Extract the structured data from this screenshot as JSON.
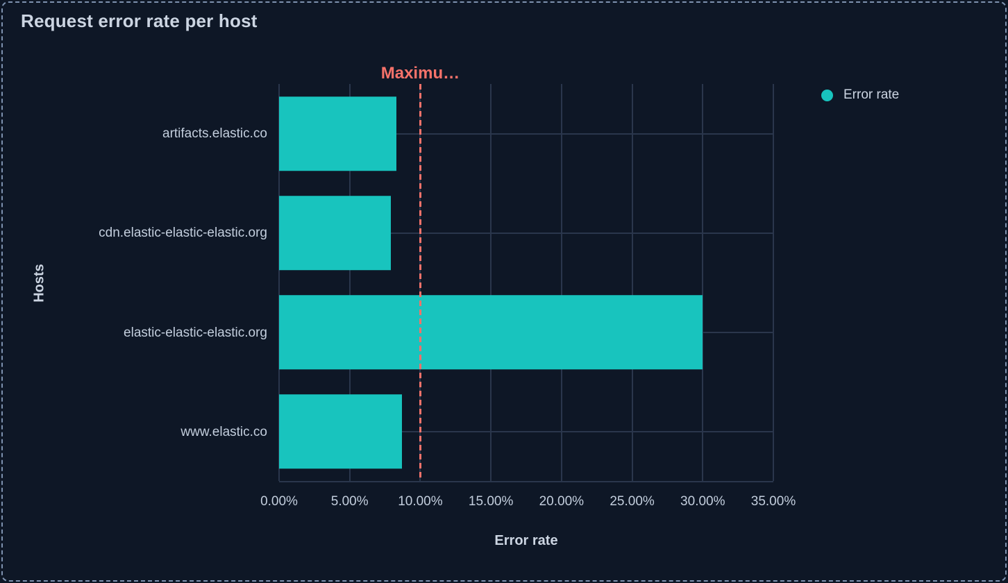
{
  "panel": {
    "title": "Request error rate per host"
  },
  "legend": {
    "position": "right",
    "items": [
      {
        "label": "Error rate",
        "color": "#18c4be"
      }
    ]
  },
  "chart_data": {
    "type": "bar",
    "orientation": "horizontal",
    "title": "Request error rate per host",
    "categories": [
      "artifacts.elastic.co",
      "cdn.elastic-elastic-elastic.org",
      "elastic-elastic-elastic.org",
      "www.elastic.co"
    ],
    "series": [
      {
        "name": "Error rate",
        "values": [
          8.3,
          7.9,
          30.0,
          8.7
        ],
        "unit": "%",
        "color": "#18c4be"
      }
    ],
    "xlabel": "Error rate",
    "ylabel": "Hosts",
    "xlim": [
      0,
      35
    ],
    "x_tick_values": [
      0,
      5,
      10,
      15,
      20,
      25,
      30,
      35
    ],
    "x_ticks": [
      "0.00%",
      "5.00%",
      "10.00%",
      "15.00%",
      "20.00%",
      "25.00%",
      "30.00%",
      "35.00%"
    ],
    "grid": true,
    "legend_position": "top-right",
    "annotation": {
      "label": "Maximu…",
      "value": 10,
      "color": "#f6726a",
      "line_style": "dashed"
    }
  },
  "colors": {
    "background": "#0e1726",
    "gridline": "#2a364c",
    "bar": "#18c4be",
    "threshold": "#f6726a",
    "text": "#ccd5e2",
    "tick_text": "#c3cedd",
    "panel_border": "#7e92b0"
  }
}
